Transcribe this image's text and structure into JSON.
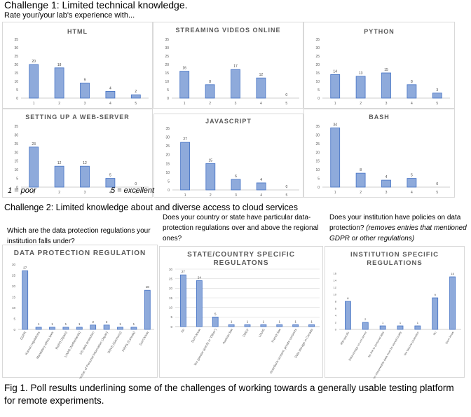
{
  "challenge1": {
    "title": "Challenge 1: Limited technical knowledge.",
    "subtitle": "Rate your/your lab's experience with..."
  },
  "scale": {
    "poor": "1 = poor",
    "excellent": "5 = excellent"
  },
  "challenge2": {
    "title": "Challenge 2: Limited knowledge about and diverse access to cloud services"
  },
  "questions": {
    "q1": "Which are the data protection regulations your institution falls under?",
    "q2": "Does your country or state have particular data-protection regulations over and above the regional ones?",
    "q3_main": "Does your institution have policies on data protection?",
    "q3_note": "(removes entries that mentioned GDPR or other regulations)"
  },
  "caption": "Fig 1. Poll results underlining some of the challenges of working towards a generally usable testing platform for remote experiments.",
  "colors": {
    "bar_fill": "#8eaadb",
    "bar_stroke": "#4472c4",
    "grid": "#d9d9d9",
    "text": "#595959"
  },
  "chart_data": [
    {
      "id": "html",
      "type": "bar",
      "title": "HTML",
      "categories": [
        "1",
        "2",
        "3",
        "4",
        "5"
      ],
      "values": [
        20,
        18,
        9,
        4,
        2
      ],
      "ylim": [
        0,
        35
      ],
      "yticks": [
        0,
        5,
        10,
        15,
        20,
        25,
        30,
        35
      ],
      "grid": false
    },
    {
      "id": "streaming",
      "type": "bar",
      "title": "STREAMING VIDEOS ONLINE",
      "categories": [
        "1",
        "2",
        "3",
        "4",
        "5"
      ],
      "values": [
        16,
        8,
        17,
        12,
        0
      ],
      "ylim": [
        0,
        35
      ],
      "yticks": [
        0,
        5,
        10,
        15,
        20,
        25,
        30,
        35
      ],
      "grid": false
    },
    {
      "id": "python",
      "type": "bar",
      "title": "PYTHON",
      "categories": [
        "1",
        "2",
        "3",
        "4",
        "5"
      ],
      "values": [
        14,
        13,
        15,
        8,
        3
      ],
      "ylim": [
        0,
        35
      ],
      "yticks": [
        0,
        5,
        10,
        15,
        20,
        25,
        30,
        35
      ],
      "grid": false
    },
    {
      "id": "webserver",
      "type": "bar",
      "title": "SETTING UP A WEB-SERVER",
      "categories": [
        "1",
        "2",
        "3",
        "4",
        "5"
      ],
      "values": [
        23,
        12,
        12,
        5,
        0
      ],
      "ylim": [
        0,
        35
      ],
      "yticks": [
        0,
        5,
        10,
        15,
        20,
        25,
        30,
        35
      ],
      "grid": false
    },
    {
      "id": "javascript",
      "type": "bar",
      "title": "JAVASCRIPT",
      "categories": [
        "1",
        "2",
        "3",
        "4",
        "5"
      ],
      "values": [
        27,
        15,
        6,
        4,
        0
      ],
      "ylim": [
        0,
        35
      ],
      "yticks": [
        0,
        5,
        10,
        15,
        20,
        25,
        30,
        35
      ],
      "grid": false
    },
    {
      "id": "bash",
      "type": "bar",
      "title": "BASH",
      "categories": [
        "1",
        "2",
        "3",
        "4",
        "5"
      ],
      "values": [
        34,
        8,
        4,
        5,
        0
      ],
      "ylim": [
        0,
        35
      ],
      "yticks": [
        0,
        5,
        10,
        15,
        20,
        25,
        30,
        35
      ],
      "grid": false
    },
    {
      "id": "dpr",
      "type": "bar",
      "title": "DATA PROTECTION REGULATION",
      "categories": [
        "GDPR",
        "Korean regulations",
        "Mandatory ethics laws",
        "RGPD (Spain)",
        "LIAAG (Netherlands)",
        "US data protection",
        "Act on Protection of Personal Information (Japan)",
        "DDVS (Germany)",
        "FIPPA (Canada)",
        "Don't know"
      ],
      "values": [
        27,
        1,
        1,
        1,
        1,
        2,
        2,
        1,
        1,
        18
      ],
      "ylim": [
        0,
        30
      ],
      "yticks": [
        0,
        5,
        10,
        15,
        20,
        25,
        30
      ],
      "grid": false
    },
    {
      "id": "state",
      "type": "bar",
      "title": "STATE/COUNTRY SPECIFIC REGULATONS",
      "categories": [
        "No",
        "Don't know",
        "Yes (please specify in \"Other\")",
        "Austrian law",
        "DSGV",
        "LIAAG",
        "French law",
        "Guardians consent, private consents",
        "Data storage in Canada"
      ],
      "values": [
        27,
        24,
        5,
        1,
        1,
        1,
        1,
        1,
        1
      ],
      "ylim": [
        0,
        30
      ],
      "yticks": [
        0,
        5,
        10,
        15,
        20,
        25,
        30
      ],
      "grid": true
    },
    {
      "id": "institution",
      "type": "bar",
      "title": "INSTITUTION SPECIFIC REGULATIONS",
      "categories": [
        "IRB-specific",
        "Data storage on-uni server",
        "No link to personal data",
        "Non-interpretable data must be stored locally",
        "Yes beyond protection",
        "No",
        "Don't know"
      ],
      "values": [
        8,
        2,
        1,
        1,
        1,
        9,
        15
      ],
      "ylim": [
        0,
        16
      ],
      "yticks": [
        0,
        2,
        4,
        6,
        8,
        10,
        12,
        14,
        16
      ],
      "grid": false
    }
  ]
}
